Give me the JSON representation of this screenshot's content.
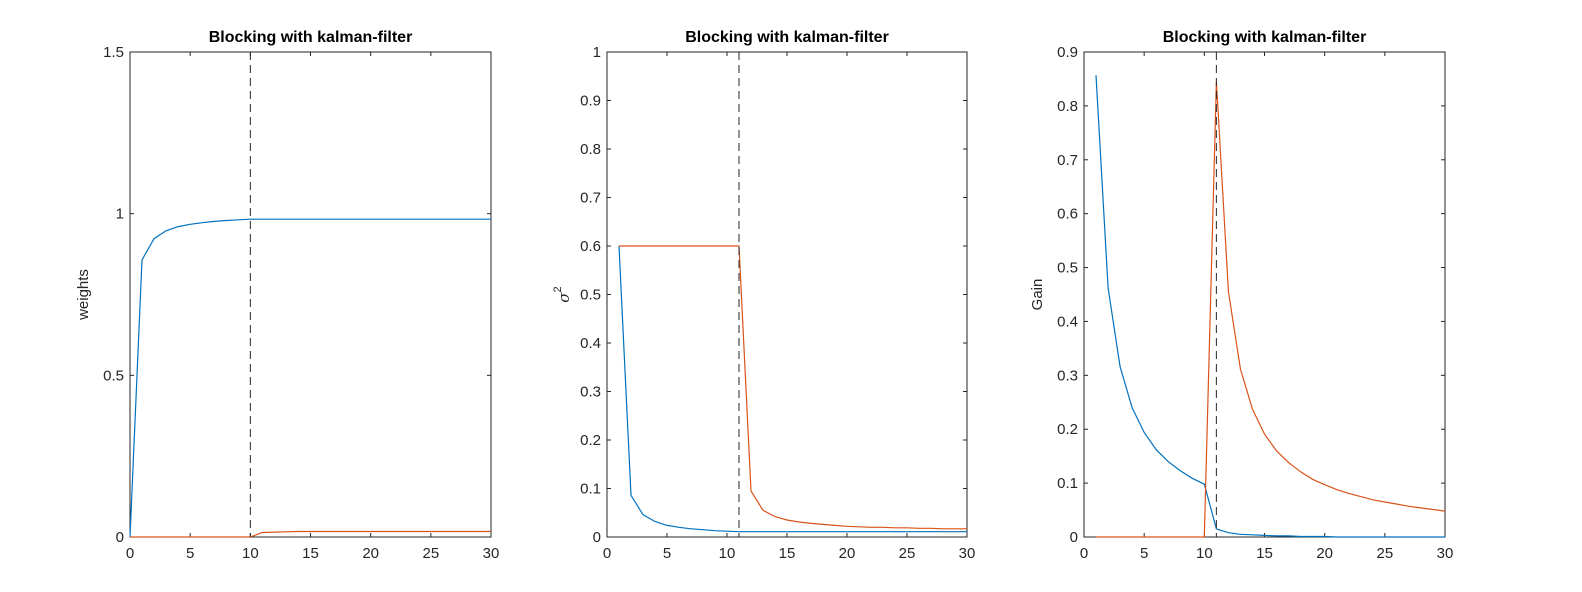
{
  "chart_data": [
    {
      "type": "line",
      "title": "Blocking with kalman-filter",
      "ylabel": "weights",
      "ylabel_parts": [],
      "xlim": [
        0,
        30
      ],
      "ylim": [
        0,
        1.5
      ],
      "xticks": [
        0,
        5,
        10,
        15,
        20,
        25,
        30
      ],
      "yticks": [
        0,
        0.5,
        1,
        1.5
      ],
      "ytick_labels": [
        "0",
        "0.5",
        "1",
        "1.5"
      ],
      "vline_x": 10,
      "series": [
        {
          "color": "#0072BD",
          "x": [
            0,
            1,
            2,
            3,
            4,
            5,
            6,
            7,
            8,
            9,
            10,
            11,
            12,
            13,
            14,
            15,
            16,
            17,
            18,
            19,
            20,
            21,
            22,
            23,
            24,
            25,
            26,
            27,
            28,
            29,
            30
          ],
          "y": [
            0,
            0.857,
            0.923,
            0.947,
            0.96,
            0.967,
            0.972,
            0.976,
            0.979,
            0.981,
            0.983,
            0.983,
            0.983,
            0.983,
            0.983,
            0.983,
            0.983,
            0.983,
            0.983,
            0.983,
            0.983,
            0.983,
            0.983,
            0.983,
            0.983,
            0.983,
            0.983,
            0.983,
            0.983,
            0.983,
            0.983
          ]
        },
        {
          "color": "#D95319",
          "x": [
            0,
            1,
            2,
            3,
            4,
            5,
            6,
            7,
            8,
            9,
            10,
            11,
            12,
            13,
            14,
            15,
            16,
            17,
            18,
            19,
            20,
            21,
            22,
            23,
            24,
            25,
            26,
            27,
            28,
            29,
            30
          ],
          "y": [
            0,
            0,
            0,
            0,
            0,
            0,
            0,
            0,
            0,
            0,
            0,
            0.014,
            0.015,
            0.016,
            0.017,
            0.017,
            0.017,
            0.017,
            0.017,
            0.017,
            0.017,
            0.017,
            0.017,
            0.017,
            0.017,
            0.017,
            0.017,
            0.017,
            0.017,
            0.017,
            0.017
          ]
        }
      ]
    },
    {
      "type": "line",
      "title": "Blocking with kalman-filter",
      "ylabel": "",
      "ylabel_parts": [
        "σ",
        "2"
      ],
      "xlim": [
        0,
        30
      ],
      "ylim": [
        0,
        1
      ],
      "xticks": [
        0,
        5,
        10,
        15,
        20,
        25,
        30
      ],
      "yticks": [
        0,
        0.1,
        0.2,
        0.3,
        0.4,
        0.5,
        0.6,
        0.7,
        0.8,
        0.9,
        1
      ],
      "ytick_labels": [
        "0",
        "0.1",
        "0.2",
        "0.3",
        "0.4",
        "0.5",
        "0.6",
        "0.7",
        "0.8",
        "0.9",
        "1"
      ],
      "vline_x": 11,
      "series": [
        {
          "color": "#0072BD",
          "x": [
            1,
            2,
            3,
            4,
            5,
            6,
            7,
            8,
            9,
            10,
            11,
            12,
            13,
            14,
            15,
            16,
            17,
            18,
            19,
            20,
            21,
            22,
            23,
            24,
            25,
            26,
            27,
            28,
            29,
            30
          ],
          "y": [
            0.6,
            0.086,
            0.046,
            0.032,
            0.024,
            0.02,
            0.017,
            0.015,
            0.013,
            0.012,
            0.011,
            0.011,
            0.011,
            0.011,
            0.011,
            0.011,
            0.011,
            0.011,
            0.011,
            0.011,
            0.011,
            0.011,
            0.011,
            0.011,
            0.011,
            0.011,
            0.011,
            0.011,
            0.011,
            0.011
          ]
        },
        {
          "color": "#D95319",
          "x": [
            1,
            2,
            3,
            4,
            5,
            6,
            7,
            8,
            9,
            10,
            11,
            12,
            13,
            14,
            15,
            16,
            17,
            18,
            19,
            20,
            21,
            22,
            23,
            24,
            25,
            26,
            27,
            28,
            29,
            30
          ],
          "y": [
            0.6,
            0.6,
            0.6,
            0.6,
            0.6,
            0.6,
            0.6,
            0.6,
            0.6,
            0.6,
            0.6,
            0.095,
            0.055,
            0.042,
            0.035,
            0.031,
            0.028,
            0.026,
            0.024,
            0.022,
            0.021,
            0.02,
            0.02,
            0.019,
            0.019,
            0.018,
            0.018,
            0.017,
            0.017,
            0.017
          ]
        }
      ]
    },
    {
      "type": "line",
      "title": "Blocking with kalman-filter",
      "ylabel": "Gain",
      "ylabel_parts": [],
      "xlim": [
        0,
        30
      ],
      "ylim": [
        0,
        0.9
      ],
      "xticks": [
        0,
        5,
        10,
        15,
        20,
        25,
        30
      ],
      "yticks": [
        0,
        0.1,
        0.2,
        0.3,
        0.4,
        0.5,
        0.6,
        0.7,
        0.8,
        0.9
      ],
      "ytick_labels": [
        "0",
        "0.1",
        "0.2",
        "0.3",
        "0.4",
        "0.5",
        "0.6",
        "0.7",
        "0.8",
        "0.9"
      ],
      "vline_x": 11,
      "series": [
        {
          "color": "#0072BD",
          "x": [
            1,
            2,
            3,
            4,
            5,
            6,
            7,
            8,
            9,
            10,
            11,
            12,
            13,
            14,
            15,
            16,
            17,
            18,
            19,
            20,
            21,
            22,
            23,
            24,
            25,
            26,
            27,
            28,
            29,
            30
          ],
          "y": [
            0.857,
            0.462,
            0.316,
            0.24,
            0.194,
            0.162,
            0.14,
            0.123,
            0.109,
            0.098,
            0.015,
            0.008,
            0.005,
            0.004,
            0.003,
            0.002,
            0.002,
            0.001,
            0.001,
            0.001,
            0,
            0,
            0,
            0,
            0,
            0,
            0,
            0,
            0,
            0
          ]
        },
        {
          "color": "#D95319",
          "x": [
            1,
            2,
            3,
            4,
            5,
            6,
            7,
            8,
            9,
            10,
            11,
            12,
            13,
            14,
            15,
            16,
            17,
            18,
            19,
            20,
            21,
            22,
            23,
            24,
            25,
            26,
            27,
            28,
            29,
            30
          ],
          "y": [
            0,
            0,
            0,
            0,
            0,
            0,
            0,
            0,
            0,
            0,
            0.845,
            0.456,
            0.312,
            0.237,
            0.191,
            0.16,
            0.138,
            0.121,
            0.107,
            0.097,
            0.088,
            0.081,
            0.075,
            0.069,
            0.065,
            0.061,
            0.057,
            0.054,
            0.051,
            0.048
          ]
        }
      ]
    }
  ]
}
